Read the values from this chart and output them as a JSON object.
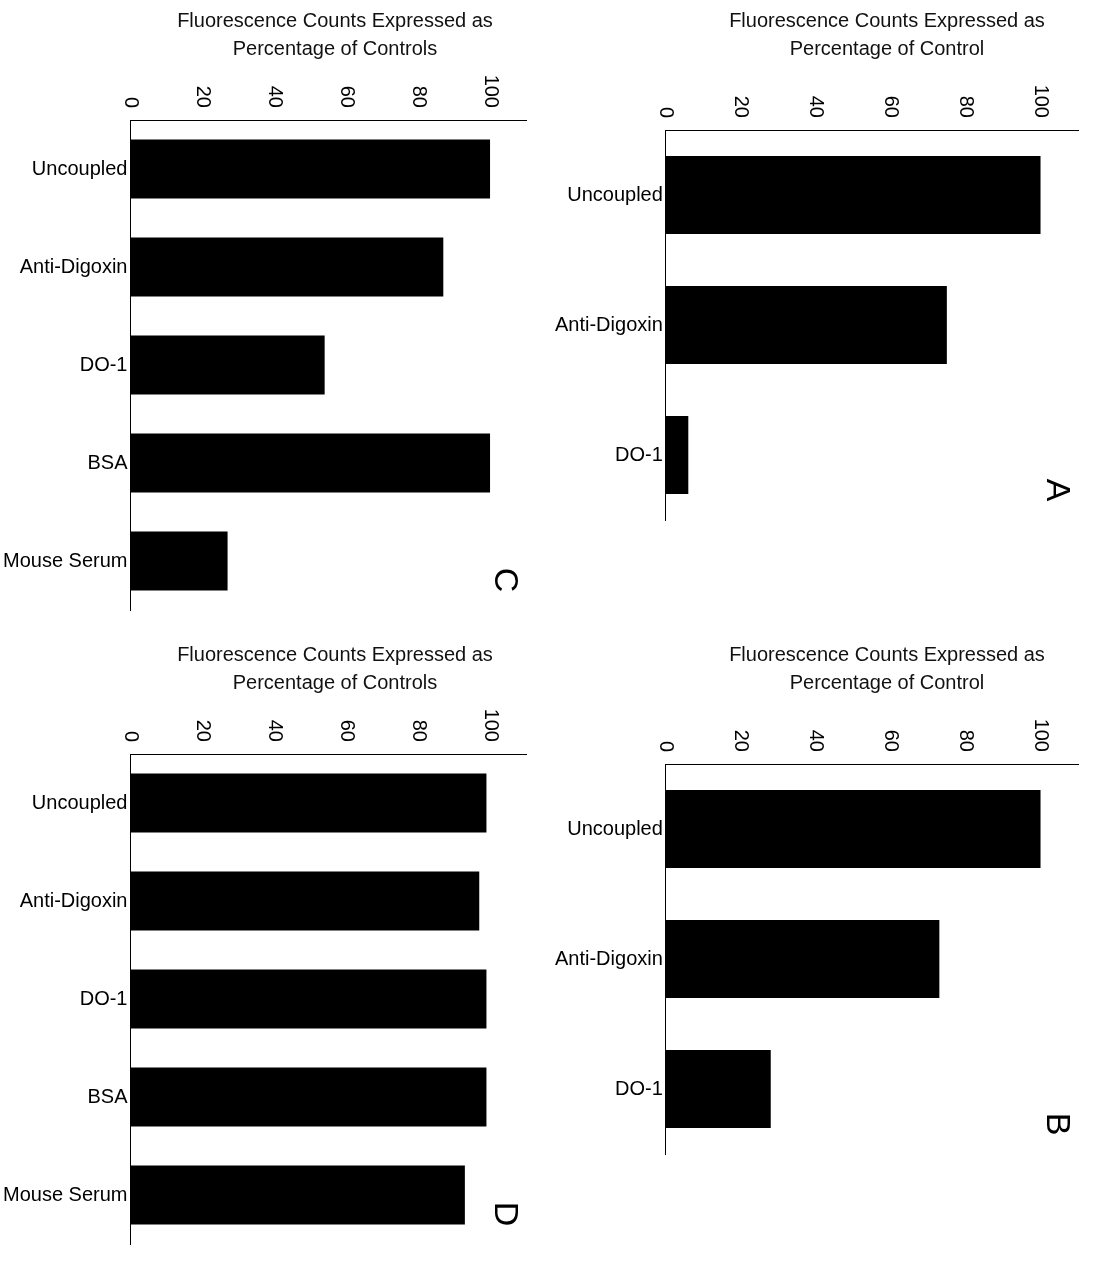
{
  "chart_data": [
    {
      "type": "bar",
      "orientation": "horizontal",
      "xlabel": "Fluorescence Counts Expressed as Percentage of Controls",
      "categories": [
        "Uncoupled",
        "Anti-Digoxin",
        "DO-1",
        "BSA",
        "Mouse Serum"
      ],
      "values": [
        100,
        87,
        54,
        100,
        27
      ],
      "color": "#000000",
      "xlim": [
        0,
        110
      ],
      "xticks": [
        0,
        20,
        40,
        60,
        80,
        100
      ],
      "grid": false,
      "annotations": [
        "C"
      ]
    },
    {
      "type": "bar",
      "orientation": "horizontal",
      "xlabel": "Fluorescence Counts Expressed as Percentage of Control",
      "categories": [
        "Uncoupled",
        "Anti-Digoxin",
        "DO-1"
      ],
      "values": [
        100,
        75,
        6
      ],
      "color": "#000000",
      "xlim": [
        0,
        110
      ],
      "xticks": [
        0,
        20,
        40,
        60,
        80,
        100
      ],
      "grid": false,
      "annotations": [
        "A"
      ]
    },
    {
      "type": "bar",
      "orientation": "horizontal",
      "xlabel": "Fluorescence Counts Expressed as Percentage of Controls",
      "categories": [
        "Uncoupled",
        "Anti-Digoxin",
        "DO-1",
        "BSA",
        "Mouse Serum"
      ],
      "values": [
        99,
        97,
        99,
        99,
        93
      ],
      "color": "#000000",
      "xlim": [
        0,
        110
      ],
      "xticks": [
        0,
        20,
        40,
        60,
        80,
        100
      ],
      "grid": false,
      "annotations": [
        "D"
      ]
    },
    {
      "type": "bar",
      "orientation": "horizontal",
      "xlabel": "Fluorescence Counts Expressed as Percentage of Control",
      "categories": [
        "Uncoupled",
        "Anti-Digoxin",
        "DO-1"
      ],
      "values": [
        100,
        73,
        28
      ],
      "color": "#000000",
      "xlim": [
        0,
        110
      ],
      "xticks": [
        0,
        20,
        40,
        60,
        80,
        100
      ],
      "grid": false,
      "annotations": [
        "B"
      ]
    }
  ]
}
